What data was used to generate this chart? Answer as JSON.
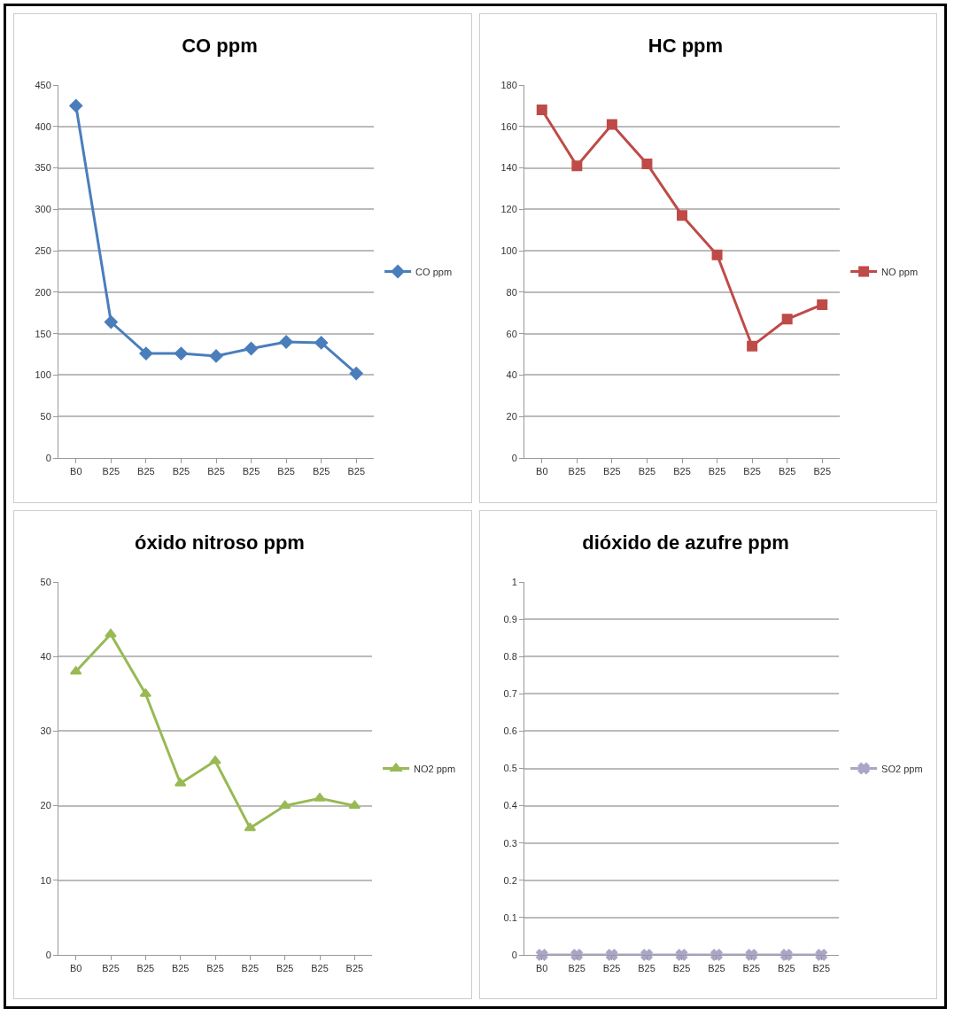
{
  "chart_data": [
    {
      "type": "line",
      "title": "CO ppm",
      "categories": [
        "B0",
        "B25",
        "B25",
        "B25",
        "B25",
        "B25",
        "B25",
        "B25",
        "B25"
      ],
      "series": [
        {
          "name": "CO ppm",
          "color": "#4a7ebb",
          "values": [
            425,
            164,
            126,
            126,
            123,
            132,
            140,
            139,
            102
          ]
        }
      ],
      "ylim": [
        0,
        450
      ],
      "yticks": [
        0,
        50,
        100,
        150,
        200,
        250,
        300,
        350,
        400,
        450
      ],
      "grid": "y",
      "legend": "right",
      "marker": "diamond"
    },
    {
      "type": "line",
      "title": "HC ppm",
      "categories": [
        "B0",
        "B25",
        "B25",
        "B25",
        "B25",
        "B25",
        "B25",
        "B25",
        "B25"
      ],
      "series": [
        {
          "name": "NO ppm",
          "color": "#be4b48",
          "values": [
            168,
            141,
            161,
            142,
            117,
            98,
            54,
            67,
            74
          ]
        }
      ],
      "ylim": [
        0,
        180
      ],
      "yticks": [
        0,
        20,
        40,
        60,
        80,
        100,
        120,
        140,
        160,
        180
      ],
      "grid": "y",
      "legend": "right",
      "marker": "square"
    },
    {
      "type": "line",
      "title": "óxido nitroso ppm",
      "categories": [
        "B0",
        "B25",
        "B25",
        "B25",
        "B25",
        "B25",
        "B25",
        "B25",
        "B25"
      ],
      "series": [
        {
          "name": "NO2 ppm",
          "color": "#98b954",
          "values": [
            38,
            43,
            35,
            23,
            26,
            17,
            20,
            21,
            20
          ]
        }
      ],
      "ylim": [
        0,
        50
      ],
      "yticks": [
        0,
        10,
        20,
        30,
        40,
        50
      ],
      "grid": "y",
      "legend": "right",
      "marker": "triangle"
    },
    {
      "type": "line",
      "title": "dióxido de azufre ppm",
      "categories": [
        "B0",
        "B25",
        "B25",
        "B25",
        "B25",
        "B25",
        "B25",
        "B25",
        "B25"
      ],
      "series": [
        {
          "name": "SO2 ppm",
          "color": "#a9a6c8",
          "values": [
            0,
            0,
            0,
            0,
            0,
            0,
            0,
            0,
            0
          ]
        }
      ],
      "ylim": [
        0,
        1
      ],
      "yticks": [
        0,
        0.1,
        0.2,
        0.3,
        0.4,
        0.5,
        0.6,
        0.7,
        0.8,
        0.9,
        1
      ],
      "grid": "y",
      "legend": "right",
      "marker": "cross"
    }
  ]
}
